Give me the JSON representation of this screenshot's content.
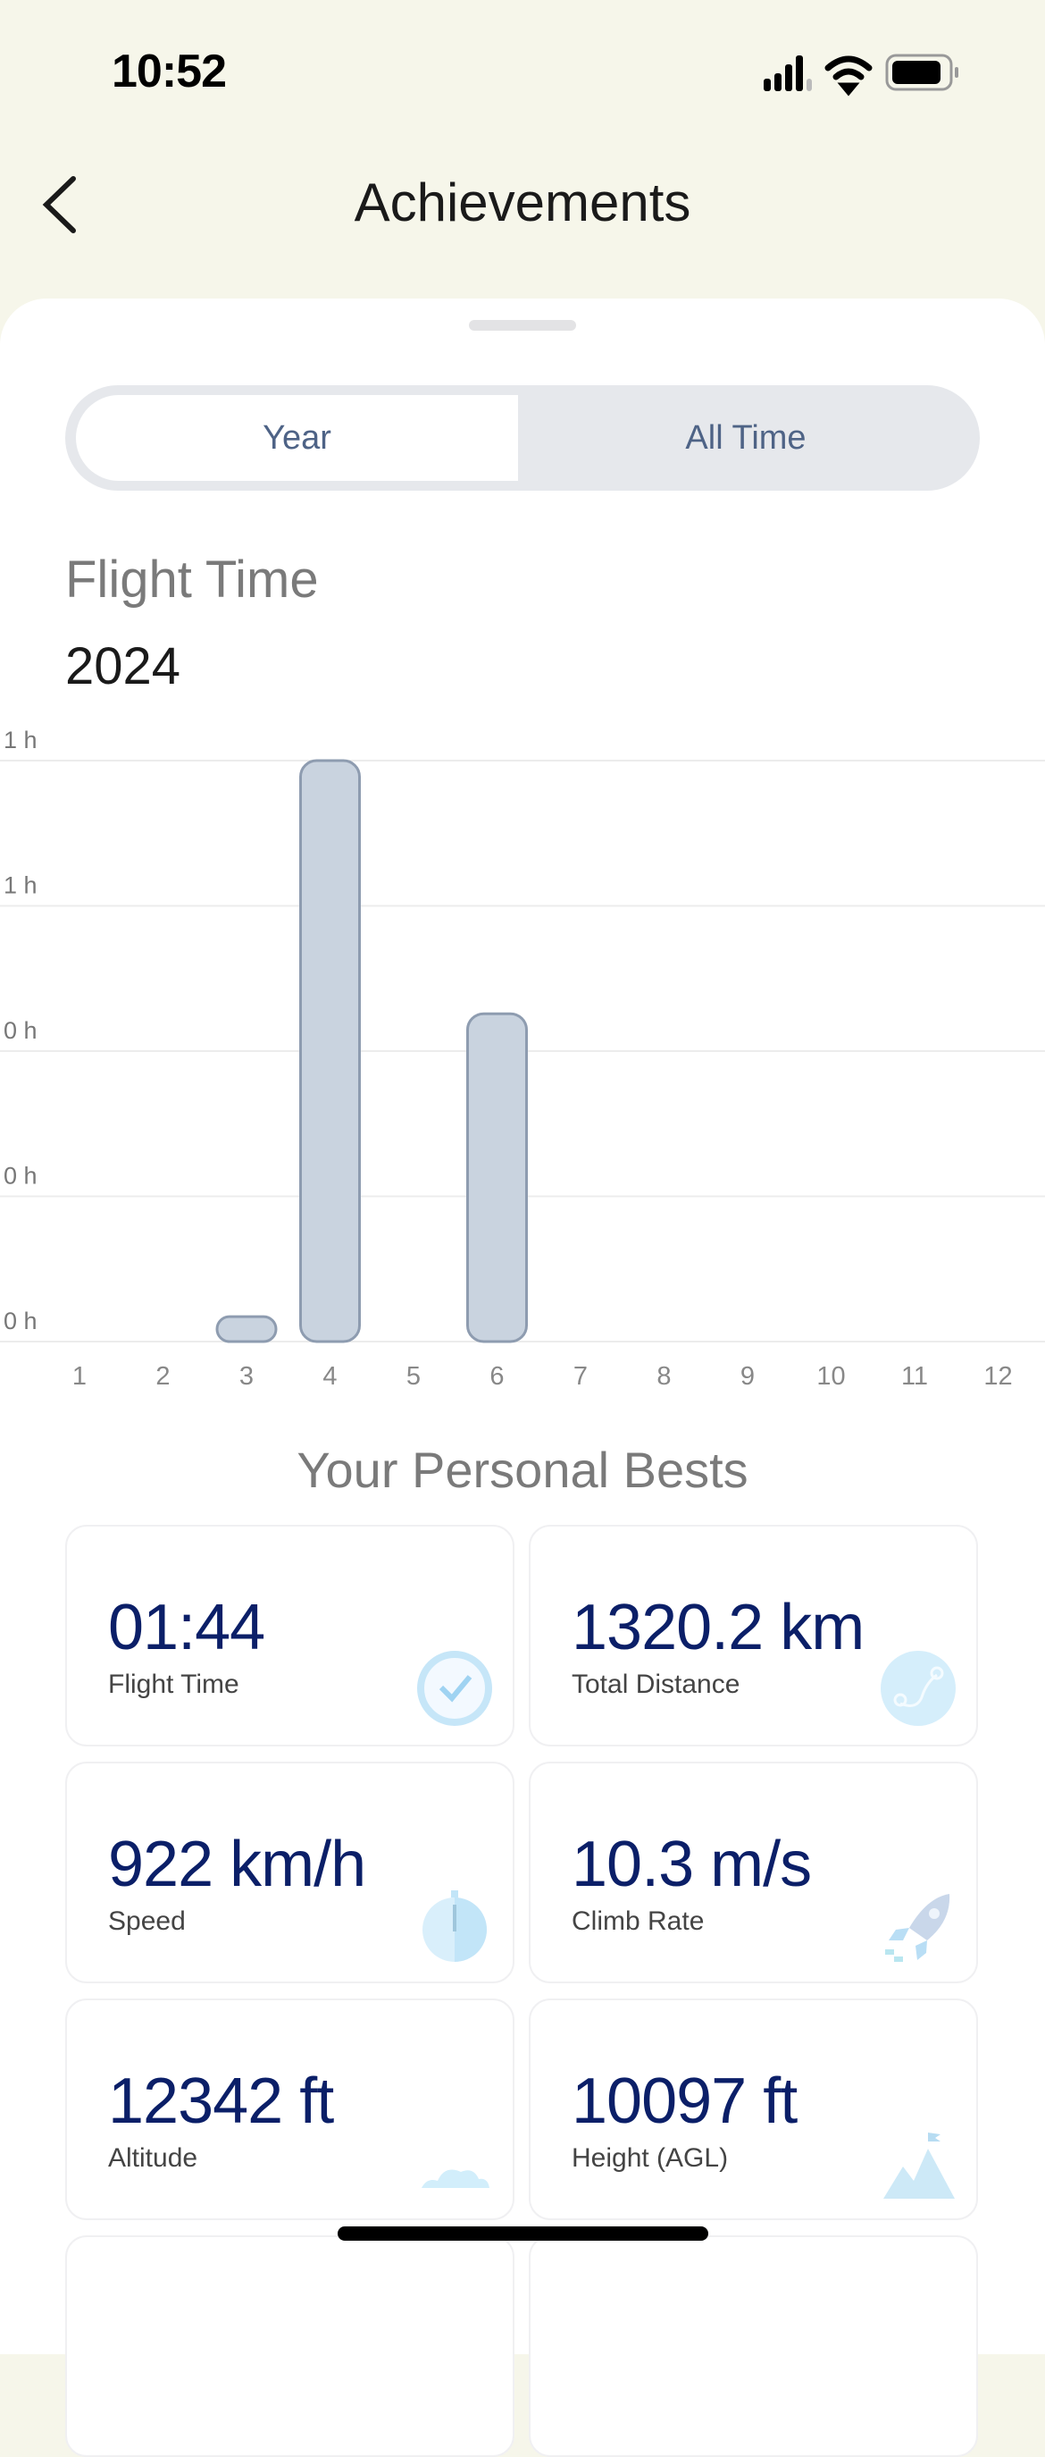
{
  "status_bar": {
    "time": "10:52",
    "icons": [
      "signal-icon",
      "wifi-icon",
      "battery-icon"
    ]
  },
  "header": {
    "title": "Achievements",
    "back_icon": "chevron-left-icon"
  },
  "segmented": {
    "options": [
      "Year",
      "All Time"
    ],
    "selected": "Year"
  },
  "chart_section": {
    "title": "Flight Time",
    "year": "2024"
  },
  "chart_data": {
    "type": "bar",
    "categories": [
      "1",
      "2",
      "3",
      "4",
      "5",
      "6",
      "7",
      "8",
      "9",
      "10",
      "11",
      "12"
    ],
    "values": [
      0,
      0,
      0.06,
      1.4,
      0,
      0.79,
      0,
      0,
      0,
      0,
      0,
      0
    ],
    "ylabel": "",
    "xlabel": "",
    "y_ticks": [
      0,
      0.35,
      0.7,
      1.05,
      1.4
    ],
    "y_tick_labels": [
      "0 h",
      "0 h",
      "0 h",
      "1 h",
      "1 h"
    ],
    "ylim": [
      0,
      1.4
    ],
    "grid": true,
    "bar_color": "#c9d3df",
    "bar_border": "#8e9cb0"
  },
  "personal_bests": {
    "title": "Your Personal Bests",
    "cards": [
      {
        "value": "01:44",
        "label": "Flight Time",
        "icon": "clock-icon"
      },
      {
        "value": "1320.2 km",
        "label": "Total Distance",
        "icon": "route-icon"
      },
      {
        "value": "922 km/h",
        "label": "Speed",
        "icon": "stopwatch-icon"
      },
      {
        "value": "10.3 m/s",
        "label": "Climb Rate",
        "icon": "rocket-icon"
      },
      {
        "value": "12342 ft",
        "label": "Altitude",
        "icon": "cloud-icon"
      },
      {
        "value": "10097 ft",
        "label": "Height (AGL)",
        "icon": "mountain-icon"
      }
    ]
  },
  "colors": {
    "value_text": "#0b1f68",
    "background": "#f6f6ea",
    "segment_text": "#4e6386"
  }
}
